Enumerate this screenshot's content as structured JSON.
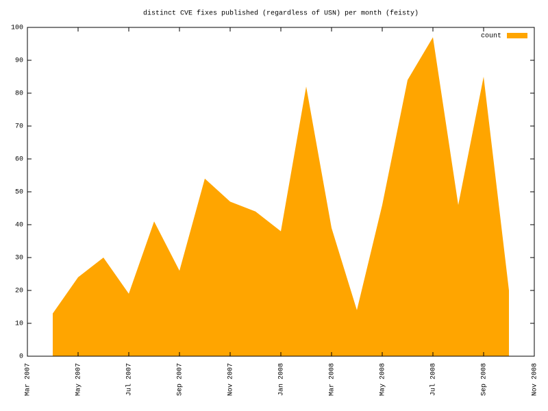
{
  "chart_data": {
    "type": "area",
    "title": "distinct CVE fixes published (regardless of USN) per month (feisty)",
    "x": [
      "2007-04",
      "2007-05",
      "2007-06",
      "2007-07",
      "2007-08",
      "2007-09",
      "2007-10",
      "2007-11",
      "2007-12",
      "2008-01",
      "2008-02",
      "2008-03",
      "2008-04",
      "2008-05",
      "2008-06",
      "2008-07",
      "2008-08",
      "2008-09",
      "2008-10"
    ],
    "series": [
      {
        "name": "count",
        "color": "#ffa500",
        "values": [
          13,
          24,
          30,
          19,
          41,
          26,
          54,
          47,
          44,
          38,
          82,
          39,
          14,
          46,
          84,
          97,
          46,
          85,
          20
        ]
      }
    ],
    "xlim": [
      "2007-03",
      "2008-11"
    ],
    "xticks": [
      {
        "value": "2007-03",
        "label": "Mar 2007"
      },
      {
        "value": "2007-05",
        "label": "May 2007"
      },
      {
        "value": "2007-07",
        "label": "Jul 2007"
      },
      {
        "value": "2007-09",
        "label": "Sep 2007"
      },
      {
        "value": "2007-11",
        "label": "Nov 2007"
      },
      {
        "value": "2008-01",
        "label": "Jan 2008"
      },
      {
        "value": "2008-03",
        "label": "Mar 2008"
      },
      {
        "value": "2008-05",
        "label": "May 2008"
      },
      {
        "value": "2008-07",
        "label": "Jul 2008"
      },
      {
        "value": "2008-09",
        "label": "Sep 2008"
      },
      {
        "value": "2008-11",
        "label": "Nov 2008"
      }
    ],
    "ylim": [
      0,
      100
    ],
    "yticks": [
      0,
      10,
      20,
      30,
      40,
      50,
      60,
      70,
      80,
      90,
      100
    ],
    "legend": "top-right"
  }
}
